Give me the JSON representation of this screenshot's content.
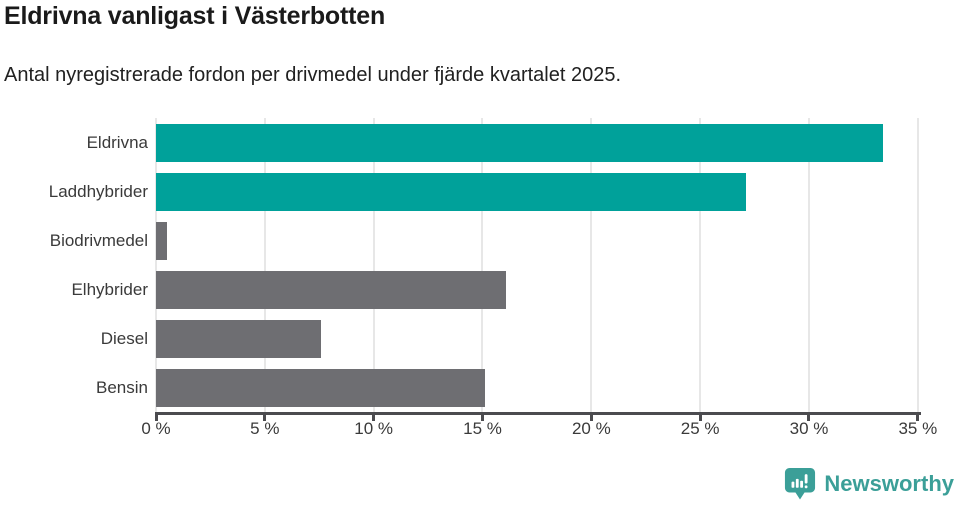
{
  "header": {
    "title": "Eldrivna vanligast i Västerbotten",
    "subtitle": "Antal nyregistrerade fordon per drivmedel under fjärde kvartalet 2025."
  },
  "chart_data": {
    "type": "bar",
    "orientation": "horizontal",
    "title": "Eldrivna vanligast i Västerbotten",
    "subtitle": "Antal nyregistrerade fordon per drivmedel under fjärde kvartalet 2025.",
    "categories": [
      "Eldrivna",
      "Laddhybrider",
      "Biodrivmedel",
      "Elhybrider",
      "Diesel",
      "Bensin"
    ],
    "values": [
      33.4,
      27.1,
      0.5,
      16.1,
      7.6,
      15.1
    ],
    "unit": "%",
    "bar_colors": [
      "#00a19a",
      "#00a19a",
      "#6e6e72",
      "#6e6e72",
      "#6e6e72",
      "#6e6e72"
    ],
    "xlabel": "",
    "ylabel": "",
    "xlim": [
      0,
      35.1
    ],
    "x_ticks": [
      0,
      5,
      10,
      15,
      20,
      25,
      30,
      35
    ],
    "x_tick_labels": [
      "0 %",
      "5 %",
      "10 %",
      "15 %",
      "20 %",
      "25 %",
      "30 %",
      "35 %"
    ],
    "grid": "vertical-only",
    "legend": "none"
  },
  "colors": {
    "accent_teal": "#00a19a",
    "neutral_gray": "#6e6e72",
    "gridline": "#e7e7e7",
    "axis": "#4b4b4f",
    "brand_teal": "#3b9f98"
  },
  "footer": {
    "brand": "Newsworthy"
  }
}
